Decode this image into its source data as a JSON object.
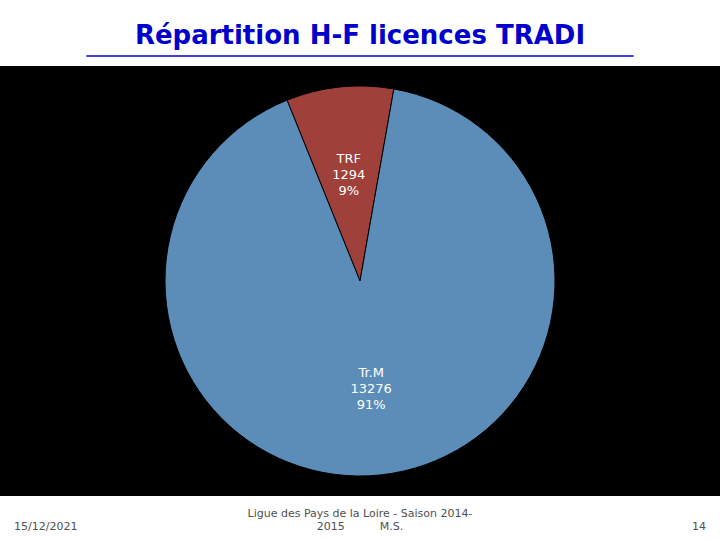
{
  "chart_data": {
    "type": "pie",
    "title": "Répartition H-F licences TRADI",
    "categories": [
      "TRF",
      "Tr.M"
    ],
    "values": [
      1294,
      13276
    ],
    "percentages": [
      9,
      91
    ],
    "percentage_labels": [
      "9%",
      "91%"
    ],
    "colors": [
      "#A0403A",
      "#5B8DB8"
    ],
    "data_labels": true,
    "annotations": [
      "15/12/2021",
      "Ligue des Pays de la Loire - Saison 2014-\n2015          M.S.",
      "14"
    ]
  }
}
